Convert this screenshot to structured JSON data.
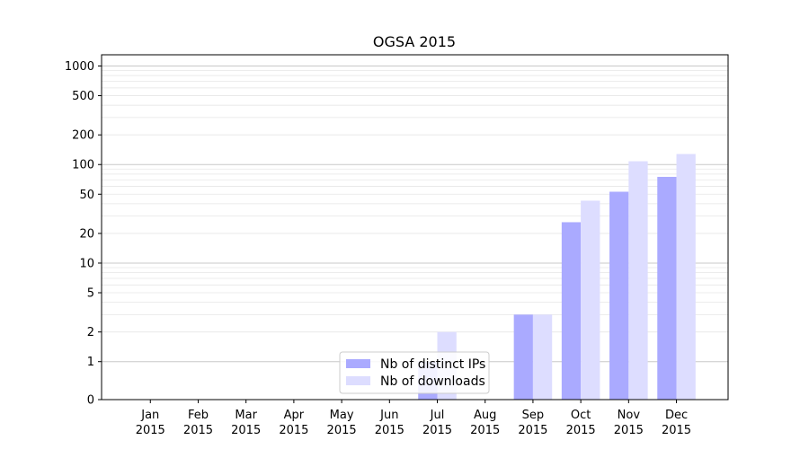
{
  "chart_data": {
    "type": "bar",
    "title": "OGSA 2015",
    "xlabel": "",
    "ylabel": "",
    "y_scale": "symlog",
    "ylim": [
      0,
      1300
    ],
    "y_ticks": [
      {
        "value": 0,
        "label": "0"
      },
      {
        "value": 1,
        "label": "1"
      },
      {
        "value": 2,
        "label": "2"
      },
      {
        "value": 5,
        "label": "5"
      },
      {
        "value": 10,
        "label": "10"
      },
      {
        "value": 20,
        "label": "20"
      },
      {
        "value": 50,
        "label": "50"
      },
      {
        "value": 100,
        "label": "100"
      },
      {
        "value": 200,
        "label": "200"
      },
      {
        "value": 500,
        "label": "500"
      },
      {
        "value": 1000,
        "label": "1000"
      }
    ],
    "grid": true,
    "legend_position": "lower-center",
    "categories": [
      {
        "month": "Jan",
        "year": "2015"
      },
      {
        "month": "Feb",
        "year": "2015"
      },
      {
        "month": "Mar",
        "year": "2015"
      },
      {
        "month": "Apr",
        "year": "2015"
      },
      {
        "month": "May",
        "year": "2015"
      },
      {
        "month": "Jun",
        "year": "2015"
      },
      {
        "month": "Jul",
        "year": "2015"
      },
      {
        "month": "Aug",
        "year": "2015"
      },
      {
        "month": "Sep",
        "year": "2015"
      },
      {
        "month": "Oct",
        "year": "2015"
      },
      {
        "month": "Nov",
        "year": "2015"
      },
      {
        "month": "Dec",
        "year": "2015"
      }
    ],
    "series": [
      {
        "name": "Nb of distinct IPs",
        "color": "#aaaaff",
        "values": [
          0,
          0,
          0,
          0,
          0,
          0,
          1,
          0,
          3,
          26,
          53,
          75
        ]
      },
      {
        "name": "Nb of downloads",
        "color": "#ddddff",
        "values": [
          0,
          0,
          0,
          0,
          0,
          0,
          2,
          0,
          3,
          43,
          108,
          128
        ]
      }
    ]
  }
}
